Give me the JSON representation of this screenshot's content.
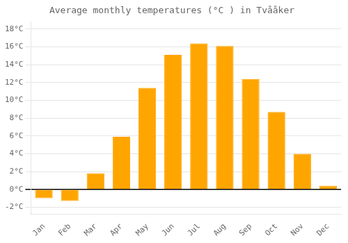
{
  "chart_data": {
    "type": "bar",
    "title": "Average monthly temperatures (°C ) in Tvååker",
    "categories": [
      "Jan",
      "Feb",
      "Mar",
      "Apr",
      "May",
      "Jun",
      "Jul",
      "Aug",
      "Sep",
      "Oct",
      "Nov",
      "Dec"
    ],
    "values": [
      -1.0,
      -1.3,
      1.8,
      5.9,
      11.4,
      15.1,
      16.4,
      16.1,
      12.4,
      8.7,
      4.0,
      0.4
    ],
    "color": "#FFA500",
    "ylim": [
      -2.8,
      18.8
    ],
    "yticks": [
      {
        "value": -2,
        "label": "-2°C"
      },
      {
        "value": 0,
        "label": "0°C"
      },
      {
        "value": 2,
        "label": "2°C"
      },
      {
        "value": 4,
        "label": "4°C"
      },
      {
        "value": 6,
        "label": "6°C"
      },
      {
        "value": 8,
        "label": "8°C"
      },
      {
        "value": 10,
        "label": "10°C"
      },
      {
        "value": 12,
        "label": "12°C"
      },
      {
        "value": 14,
        "label": "14°C"
      },
      {
        "value": 16,
        "label": "16°C"
      },
      {
        "value": 18,
        "label": "18°C"
      }
    ],
    "grid": true
  }
}
